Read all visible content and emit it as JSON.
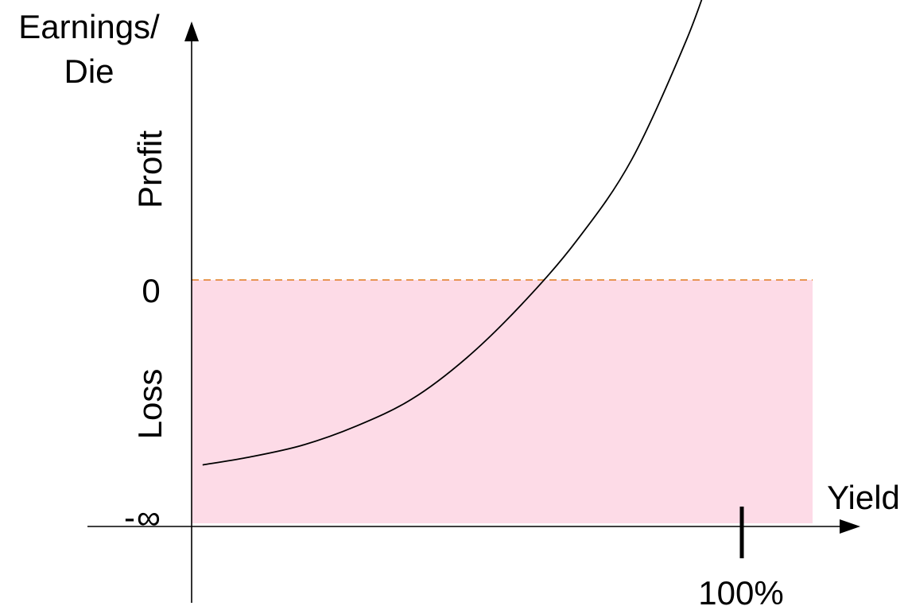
{
  "chart_data": {
    "type": "line",
    "title": "",
    "ylabel_lines": [
      "Earnings/",
      "Die"
    ],
    "xlabel": "Yield",
    "x_tick_label": "100%",
    "y_zero_label": "0",
    "y_min_label": "-∞",
    "region_labels": {
      "upper": "Profit",
      "lower": "Loss"
    },
    "loss_region_color": "#fddbe7",
    "zero_line_color": "#e07b1f",
    "curve": {
      "x": [
        0.02,
        0.1,
        0.2,
        0.3,
        0.4,
        0.5,
        0.6,
        0.7,
        0.8,
        0.9,
        0.95
      ],
      "y": [
        -0.76,
        -0.73,
        -0.68,
        -0.6,
        -0.49,
        -0.32,
        -0.1,
        0.18,
        0.55,
        1.1,
        1.45
      ]
    },
    "xlim": [
      0,
      1.12
    ],
    "ylim": [
      -1,
      1.55
    ]
  }
}
